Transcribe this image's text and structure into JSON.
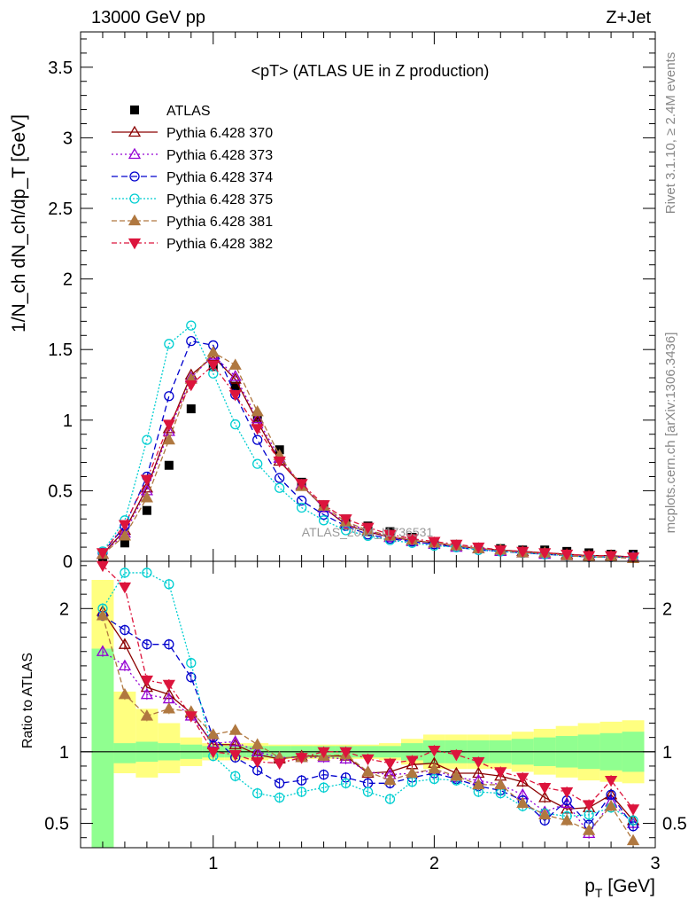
{
  "header": {
    "left": "13000 GeV pp",
    "right": "Z+Jet"
  },
  "side_labels": {
    "rivet": "Rivet 3.1.10, ≥ 2.4M events",
    "mcplots": "mcplots.cern.ch [arXiv:1306.3436]"
  },
  "watermark": "ATLAS_2014_I1736531",
  "colors": {
    "atlas": "#000000",
    "p370": "#8b0000",
    "p373": "#9400d3",
    "p374": "#0000cd",
    "p375": "#00ced1",
    "p381": "#b07840",
    "p382": "#dc143c",
    "band_yellow": "#ffff80",
    "band_green": "#90ff90"
  },
  "chart_data": [
    {
      "type": "line",
      "title": "<pT> (ATLAS UE in Z production)",
      "xlabel": "",
      "ylabel": "1/N_ch dN_ch/dp_T [GeV]",
      "xlim": [
        0.4,
        3.0
      ],
      "ylim": [
        0,
        3.75
      ],
      "yticks": [
        "0",
        "0.5",
        "1",
        "1.5",
        "2",
        "2.5",
        "3",
        "3.5"
      ],
      "legend_placement": "top-left",
      "x": [
        0.5,
        0.6,
        0.7,
        0.8,
        0.9,
        1.0,
        1.1,
        1.2,
        1.3,
        1.4,
        1.5,
        1.6,
        1.7,
        1.8,
        1.9,
        2.0,
        2.1,
        2.2,
        2.3,
        2.4,
        2.5,
        2.6,
        2.7,
        2.8,
        2.9
      ],
      "series": [
        {
          "name": "ATLAS",
          "style": "data",
          "values": [
            0.03,
            0.13,
            0.36,
            0.68,
            1.08,
            1.38,
            1.24,
            1.02,
            0.79,
            0.56,
            0.4,
            0.3,
            0.25,
            0.21,
            0.17,
            0.14,
            0.12,
            0.1,
            0.09,
            0.08,
            0.08,
            0.07,
            0.06,
            0.05,
            0.05
          ]
        },
        {
          "name": "Pythia 6.428 370",
          "style": "370",
          "values": [
            0.05,
            0.22,
            0.52,
            0.94,
            1.32,
            1.45,
            1.29,
            0.99,
            0.71,
            0.54,
            0.38,
            0.26,
            0.21,
            0.17,
            0.15,
            0.13,
            0.11,
            0.09,
            0.08,
            0.07,
            0.06,
            0.05,
            0.04,
            0.04,
            0.03
          ]
        },
        {
          "name": "Pythia 6.428 373",
          "style": "373",
          "values": [
            0.05,
            0.2,
            0.5,
            0.92,
            1.3,
            1.46,
            1.31,
            1.01,
            0.73,
            0.54,
            0.38,
            0.27,
            0.22,
            0.17,
            0.14,
            0.12,
            0.1,
            0.09,
            0.07,
            0.06,
            0.05,
            0.04,
            0.03,
            0.03,
            0.03
          ]
        },
        {
          "name": "Pythia 6.428 374",
          "style": "374",
          "values": [
            0.06,
            0.25,
            0.6,
            1.17,
            1.56,
            1.53,
            1.18,
            0.86,
            0.59,
            0.43,
            0.33,
            0.25,
            0.19,
            0.16,
            0.14,
            0.12,
            0.1,
            0.08,
            0.07,
            0.06,
            0.05,
            0.04,
            0.03,
            0.03,
            0.03
          ]
        },
        {
          "name": "Pythia 6.428 375",
          "style": "375",
          "values": [
            0.07,
            0.29,
            0.86,
            1.54,
            1.67,
            1.33,
            0.97,
            0.69,
            0.52,
            0.38,
            0.29,
            0.22,
            0.18,
            0.15,
            0.13,
            0.11,
            0.1,
            0.08,
            0.07,
            0.06,
            0.05,
            0.04,
            0.03,
            0.03,
            0.03
          ]
        },
        {
          "name": "Pythia 6.428 381",
          "style": "381",
          "values": [
            0.05,
            0.18,
            0.45,
            0.86,
            1.29,
            1.48,
            1.39,
            1.06,
            0.75,
            0.53,
            0.39,
            0.28,
            0.22,
            0.18,
            0.15,
            0.13,
            0.11,
            0.09,
            0.08,
            0.06,
            0.06,
            0.04,
            0.03,
            0.03,
            0.02
          ]
        },
        {
          "name": "Pythia 6.428 382",
          "style": "382",
          "values": [
            0.06,
            0.26,
            0.58,
            0.97,
            1.25,
            1.39,
            1.18,
            0.94,
            0.71,
            0.55,
            0.4,
            0.3,
            0.24,
            0.19,
            0.16,
            0.14,
            0.12,
            0.1,
            0.08,
            0.07,
            0.06,
            0.05,
            0.04,
            0.04,
            0.03
          ]
        }
      ]
    },
    {
      "type": "line",
      "title": "",
      "xlabel": "p_T [GeV]",
      "ylabel": "Ratio to ATLAS",
      "xlim": [
        0.4,
        3.0
      ],
      "ylim": [
        0.33,
        2.33
      ],
      "xticks": [
        "1",
        "2",
        "3"
      ],
      "yticks": [
        "0.5",
        "1",
        "2"
      ],
      "reference_line": 1,
      "x": [
        0.5,
        0.6,
        0.7,
        0.8,
        0.9,
        1.0,
        1.1,
        1.2,
        1.3,
        1.4,
        1.5,
        1.6,
        1.7,
        1.8,
        1.9,
        2.0,
        2.1,
        2.2,
        2.3,
        2.4,
        2.5,
        2.6,
        2.7,
        2.8,
        2.9
      ],
      "bands": {
        "yellow": {
          "lo": [
            0.33,
            0.85,
            0.82,
            0.85,
            0.9,
            0.94,
            0.94,
            0.94,
            0.95,
            0.95,
            0.95,
            0.95,
            0.95,
            0.94,
            0.91,
            0.88,
            0.88,
            0.88,
            0.88,
            0.86,
            0.84,
            0.82,
            0.8,
            0.79,
            0.78
          ],
          "hi": [
            2.2,
            1.42,
            1.3,
            1.2,
            1.1,
            1.06,
            1.06,
            1.06,
            1.05,
            1.05,
            1.05,
            1.05,
            1.05,
            1.06,
            1.09,
            1.12,
            1.12,
            1.12,
            1.12,
            1.14,
            1.16,
            1.18,
            1.2,
            1.21,
            1.22
          ]
        },
        "green": {
          "lo": [
            0.33,
            0.92,
            0.93,
            0.94,
            0.95,
            0.96,
            0.96,
            0.96,
            0.96,
            0.96,
            0.96,
            0.96,
            0.96,
            0.96,
            0.94,
            0.92,
            0.92,
            0.92,
            0.92,
            0.91,
            0.9,
            0.89,
            0.88,
            0.87,
            0.86
          ],
          "hi": [
            1.72,
            1.06,
            1.07,
            1.06,
            1.05,
            1.04,
            1.04,
            1.04,
            1.04,
            1.04,
            1.04,
            1.04,
            1.04,
            1.04,
            1.06,
            1.08,
            1.08,
            1.08,
            1.08,
            1.09,
            1.1,
            1.11,
            1.12,
            1.13,
            1.14
          ]
        }
      },
      "series": [
        {
          "name": "Pythia 6.428 370",
          "style": "370",
          "values": [
            1.98,
            1.75,
            1.45,
            1.4,
            1.27,
            1.05,
            1.05,
            0.98,
            0.95,
            0.97,
            0.97,
            0.97,
            0.85,
            0.86,
            0.91,
            0.92,
            0.85,
            0.85,
            0.83,
            0.79,
            0.68,
            0.6,
            0.61,
            0.7,
            0.52
          ]
        },
        {
          "name": "Pythia 6.428 373",
          "style": "373",
          "values": [
            1.7,
            1.6,
            1.4,
            1.37,
            1.25,
            1.06,
            1.07,
            1.0,
            0.96,
            0.96,
            0.96,
            0.95,
            0.86,
            0.84,
            0.85,
            0.87,
            0.82,
            0.8,
            0.77,
            0.7,
            0.58,
            0.64,
            0.43,
            0.65,
            0.5
          ]
        },
        {
          "name": "Pythia 6.428 374",
          "style": "374",
          "values": [
            1.95,
            1.85,
            1.75,
            1.75,
            1.52,
            1.1,
            0.96,
            0.87,
            0.78,
            0.8,
            0.84,
            0.82,
            0.78,
            0.78,
            0.82,
            0.85,
            0.81,
            0.76,
            0.73,
            0.66,
            0.52,
            0.66,
            0.49,
            0.7,
            0.48
          ]
        },
        {
          "name": "Pythia 6.428 375",
          "style": "375",
          "values": [
            2.0,
            2.25,
            2.25,
            2.17,
            1.62,
            0.97,
            0.83,
            0.71,
            0.68,
            0.72,
            0.75,
            0.78,
            0.72,
            0.67,
            0.79,
            0.81,
            0.8,
            0.72,
            0.71,
            0.62,
            0.57,
            0.55,
            0.56,
            0.61,
            0.52
          ]
        },
        {
          "name": "Pythia 6.428 381",
          "style": "381",
          "values": [
            1.95,
            1.4,
            1.25,
            1.3,
            1.28,
            1.12,
            1.15,
            1.05,
            0.96,
            0.96,
            0.97,
            0.98,
            0.86,
            0.8,
            0.85,
            0.88,
            0.83,
            0.77,
            0.77,
            0.64,
            0.56,
            0.52,
            0.45,
            0.62,
            0.38
          ]
        },
        {
          "name": "Pythia 6.428 382",
          "style": "382",
          "values": [
            2.3,
            2.15,
            1.5,
            1.47,
            1.25,
            1.0,
            0.98,
            0.93,
            0.92,
            0.96,
            1.0,
            1.0,
            0.95,
            0.92,
            0.94,
            1.01,
            0.98,
            0.93,
            0.86,
            0.82,
            0.75,
            0.72,
            0.63,
            0.8,
            0.6
          ]
        }
      ]
    }
  ]
}
